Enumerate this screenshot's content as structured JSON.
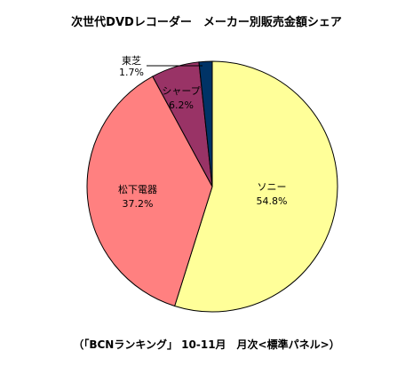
{
  "chart_data": {
    "type": "pie",
    "title": "次世代DVDレコーダー　メーカー別販売金額シェア",
    "footer": "（「BCNランキング」 10-11月　月次<標準パネル>）",
    "start_angle_deg": 0,
    "direction": "clockwise",
    "slices": [
      {
        "label": "ソニー",
        "value_text": "54.8%",
        "value": 54.8,
        "color": "#ffff99"
      },
      {
        "label": "松下電器",
        "value_text": "37.2%",
        "value": 37.2,
        "color": "#ff8080"
      },
      {
        "label": "シャープ",
        "value_text": "6.2%",
        "value": 6.2,
        "color": "#993366"
      },
      {
        "label": "東芝",
        "value_text": "1.7%",
        "value": 1.7,
        "color": "#003366"
      }
    ]
  }
}
